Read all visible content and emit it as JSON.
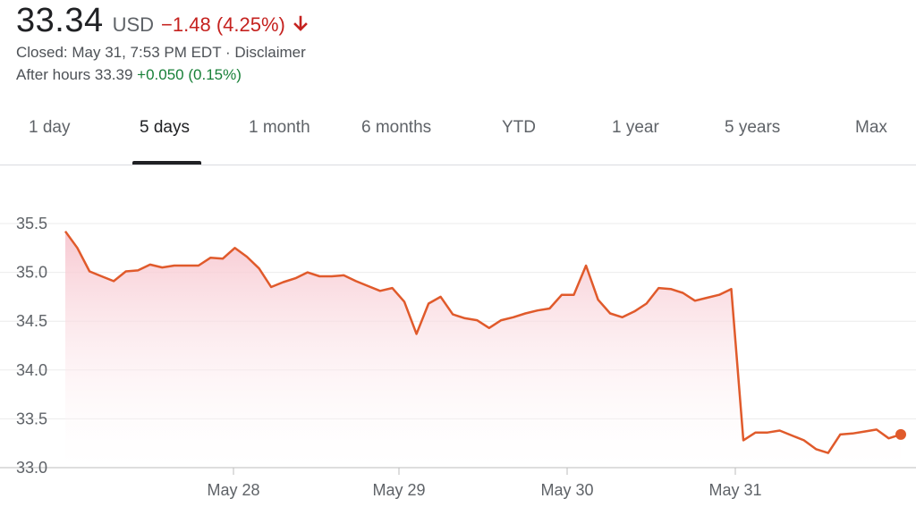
{
  "quote": {
    "price": "33.34",
    "currency": "USD",
    "change": "−1.48 (4.25%)",
    "closed_text": "Closed: May 31, 7:53 PM EDT",
    "separator": " · ",
    "disclaimer": "Disclaimer",
    "after_hours_label": "After hours 33.39",
    "after_hours_change": "+0.050 (0.15%)"
  },
  "tabs": [
    "1 day",
    "5 days",
    "1 month",
    "6 months",
    "YTD",
    "1 year",
    "5 years",
    "Max"
  ],
  "active_tab": "5 days",
  "colors": {
    "line": "#e05a2b",
    "fill_top": "#f7c6cf",
    "negative": "#c5221f",
    "positive": "#188038"
  },
  "chart_data": {
    "type": "line",
    "ylim": [
      33.0,
      35.5
    ],
    "yticks": [
      "35.5",
      "35.0",
      "34.5",
      "34.0",
      "33.5",
      "33.0"
    ],
    "xticks": [
      "May 28",
      "May 29",
      "May 30",
      "May 31"
    ],
    "grid": true,
    "series": [
      {
        "values": [
          35.42,
          35.25,
          35.01,
          34.96,
          34.91,
          35.01,
          35.02,
          35.08,
          35.05,
          35.07,
          35.07,
          35.07,
          35.15,
          35.14,
          35.25,
          35.16,
          35.04,
          34.85,
          34.9,
          34.94,
          35.0,
          34.96,
          34.96,
          34.97,
          34.91,
          34.86,
          34.81,
          34.84,
          34.7,
          34.37,
          34.68,
          34.75,
          34.57,
          34.53,
          34.51,
          34.43,
          34.51,
          34.54,
          34.58,
          34.61,
          34.63,
          34.77,
          34.77,
          35.07,
          34.72,
          34.58,
          34.54,
          34.6,
          34.68,
          34.84,
          34.83,
          34.79,
          34.71,
          34.74,
          34.77,
          34.83,
          33.28,
          33.36,
          33.36,
          33.38,
          33.33,
          33.28,
          33.19,
          33.15,
          33.34,
          33.35,
          33.37,
          33.39,
          33.3,
          33.34
        ]
      }
    ]
  }
}
